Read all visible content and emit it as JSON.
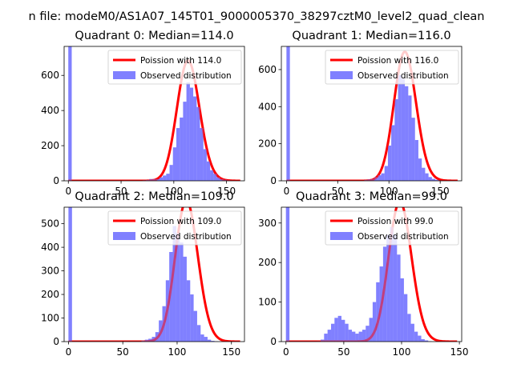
{
  "figure_title": "n file: modeM0/AS1A07_145T01_9000005370_38297cztM0_level2_quad_clean",
  "colors": {
    "hist": "#8080ff",
    "curve": "#ff0000"
  },
  "chart_data": [
    {
      "type": "bar",
      "title": "Quadrant 0: Median=114.0",
      "median": 114.0,
      "xlim": [
        -4,
        167
      ],
      "ylim": [
        0,
        765
      ],
      "xticks": [
        0,
        50,
        100,
        150
      ],
      "yticks": [
        0,
        200,
        400,
        600
      ],
      "xtick_labels": [
        "0",
        "50",
        "100",
        "150"
      ],
      "ytick_labels": [
        "0",
        "200",
        "400",
        "600"
      ],
      "bin_width": 3.2,
      "bin_start": 0,
      "hist": [
        765,
        0,
        0,
        0,
        0,
        0,
        0,
        0,
        0,
        0,
        0,
        0,
        0,
        0,
        0,
        0,
        0,
        0,
        0,
        0,
        0,
        0,
        3,
        5,
        10,
        10,
        10,
        20,
        30,
        40,
        90,
        190,
        300,
        360,
        450,
        560,
        530,
        480,
        420,
        300,
        180,
        110,
        60,
        40,
        20,
        10,
        6,
        3,
        1,
        0
      ],
      "poisson_label": "Poission with 114.0",
      "observed_label": "Observed distribution",
      "curve_overlap": "left"
    },
    {
      "type": "bar",
      "title": "Quadrant 1: Median=116.0",
      "median": 116.0,
      "xlim": [
        -5,
        171
      ],
      "ylim": [
        0,
        725
      ],
      "xticks": [
        0,
        50,
        100,
        150
      ],
      "yticks": [
        0,
        200,
        400,
        600
      ],
      "xtick_labels": [
        "0",
        "50",
        "100",
        "150"
      ],
      "ytick_labels": [
        "0",
        "200",
        "400",
        "600"
      ],
      "bin_width": 3.3,
      "bin_start": 0,
      "hist": [
        725,
        0,
        0,
        0,
        0,
        0,
        0,
        0,
        0,
        0,
        0,
        0,
        0,
        0,
        0,
        0,
        0,
        0,
        0,
        0,
        0,
        0,
        0,
        5,
        8,
        10,
        20,
        30,
        40,
        80,
        190,
        300,
        440,
        570,
        550,
        510,
        460,
        340,
        220,
        120,
        70,
        40,
        20,
        10,
        5,
        2,
        1,
        0
      ],
      "poisson_label": "Poission with 116.0",
      "observed_label": "Observed distribution",
      "curve_overlap": "left"
    },
    {
      "type": "bar",
      "title": "Quadrant 2: Median=109.0",
      "median": 109.0,
      "xlim": [
        -4,
        162
      ],
      "ylim": [
        0,
        570
      ],
      "xticks": [
        0,
        50,
        100,
        150
      ],
      "yticks": [
        0,
        100,
        200,
        300,
        400,
        500
      ],
      "xtick_labels": [
        "0",
        "50",
        "100",
        "150"
      ],
      "ytick_labels": [
        "0",
        "100",
        "200",
        "300",
        "400",
        "500"
      ],
      "bin_width": 3.2,
      "bin_start": 0,
      "hist": [
        570,
        0,
        0,
        0,
        0,
        0,
        0,
        0,
        0,
        0,
        0,
        0,
        0,
        0,
        0,
        0,
        0,
        0,
        0,
        0,
        0,
        4,
        8,
        12,
        20,
        40,
        90,
        150,
        260,
        380,
        490,
        460,
        420,
        360,
        260,
        200,
        130,
        70,
        30,
        20,
        8,
        3,
        1,
        0
      ],
      "poisson_label": "Poission with 109.0",
      "observed_label": "Observed distribution",
      "curve_overlap": "left"
    },
    {
      "type": "bar",
      "title": "Quadrant 3: Median=99.0",
      "median": 99.0,
      "xlim": [
        -4,
        152
      ],
      "ylim": [
        0,
        340
      ],
      "xticks": [
        0,
        50,
        100,
        150
      ],
      "yticks": [
        0,
        100,
        200,
        300
      ],
      "xtick_labels": [
        "0",
        "50",
        "100",
        "150"
      ],
      "ytick_labels": [
        "0",
        "100",
        "200",
        "300"
      ],
      "bin_width": 3.0,
      "bin_start": 0,
      "hist": [
        340,
        0,
        0,
        0,
        0,
        0,
        0,
        0,
        0,
        1,
        5,
        20,
        30,
        45,
        60,
        65,
        55,
        45,
        30,
        25,
        20,
        25,
        30,
        40,
        60,
        100,
        150,
        190,
        240,
        270,
        290,
        270,
        220,
        160,
        120,
        70,
        45,
        25,
        15,
        6,
        3,
        1,
        0
      ],
      "poisson_label": "Poission with 99.0",
      "observed_label": "Observed distribution",
      "curve_overlap": "right"
    }
  ]
}
